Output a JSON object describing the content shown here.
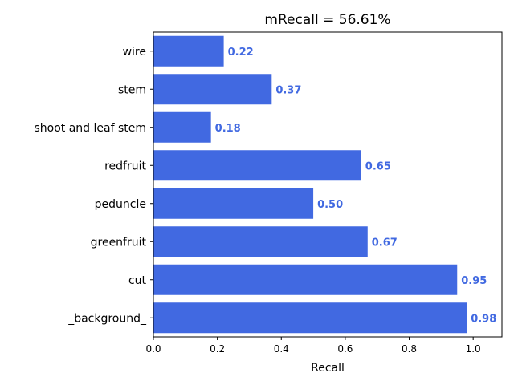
{
  "chart_data": {
    "type": "bar",
    "orientation": "horizontal",
    "title": "mRecall = 56.61%",
    "xlabel": "Recall",
    "ylabel": "",
    "categories": [
      "wire",
      "stem",
      "shoot and leaf stem",
      "redfruit",
      "peduncle",
      "greenfruit",
      "cut",
      "_background_"
    ],
    "values": [
      0.22,
      0.37,
      0.18,
      0.65,
      0.5,
      0.67,
      0.95,
      0.98
    ],
    "value_labels": [
      "0.22",
      "0.37",
      "0.18",
      "0.65",
      "0.50",
      "0.67",
      "0.95",
      "0.98"
    ],
    "xlim": [
      0,
      1.09
    ],
    "xticks": [
      0.0,
      0.2,
      0.4,
      0.6,
      0.8,
      1.0
    ],
    "xtick_labels": [
      "0.0",
      "0.2",
      "0.4",
      "0.6",
      "0.8",
      "1.0"
    ],
    "grid": false,
    "legend": "none",
    "bar_color": "#4169e1",
    "label_color": "#4169e1"
  }
}
